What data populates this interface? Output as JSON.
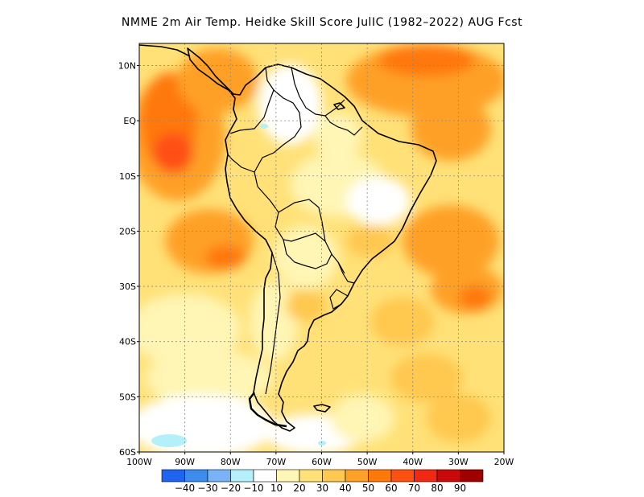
{
  "title": "NMME  2m Air Temp. Heidke Skill Score JulIC (1982–2022) AUG Fcst",
  "map": {
    "lon_range": [
      -100,
      -20
    ],
    "lat_range": [
      -60,
      14
    ],
    "lat_labels": [
      {
        "lat": 10,
        "text": "10N"
      },
      {
        "lat": 0,
        "text": "EQ"
      },
      {
        "lat": -10,
        "text": "10S"
      },
      {
        "lat": -20,
        "text": "20S"
      },
      {
        "lat": -30,
        "text": "30S"
      },
      {
        "lat": -40,
        "text": "40S"
      },
      {
        "lat": -50,
        "text": "50S"
      },
      {
        "lat": -60,
        "text": "60S"
      }
    ],
    "lon_labels": [
      {
        "lon": -100,
        "text": "100W"
      },
      {
        "lon": -90,
        "text": "90W"
      },
      {
        "lon": -80,
        "text": "80W"
      },
      {
        "lon": -70,
        "text": "70W"
      },
      {
        "lon": -60,
        "text": "60W"
      },
      {
        "lon": -50,
        "text": "50W"
      },
      {
        "lon": -40,
        "text": "40W"
      },
      {
        "lon": -30,
        "text": "30W"
      },
      {
        "lon": -20,
        "text": "20W"
      }
    ]
  },
  "colorbar": {
    "colors": [
      "#1e64f0",
      "#3c8cf0",
      "#78b4f5",
      "#b4f0fa",
      "#ffffff",
      "#fff5b4",
      "#ffe178",
      "#ffc850",
      "#ffa028",
      "#ff780a",
      "#ff5014",
      "#f02814",
      "#c80a0a",
      "#a00000"
    ],
    "labels": [
      "−40",
      "−30",
      "−20",
      "−10",
      "10",
      "20",
      "30",
      "40",
      "50",
      "60",
      "70",
      "80",
      "90"
    ]
  },
  "palette": {
    "white": "#ffffff",
    "c10": "#fff5b4",
    "c20": "#ffe178",
    "c30": "#ffc850",
    "c40": "#ffa028",
    "c50": "#ff780a",
    "c60": "#ff5014",
    "neg10": "#b4f0fa"
  }
}
